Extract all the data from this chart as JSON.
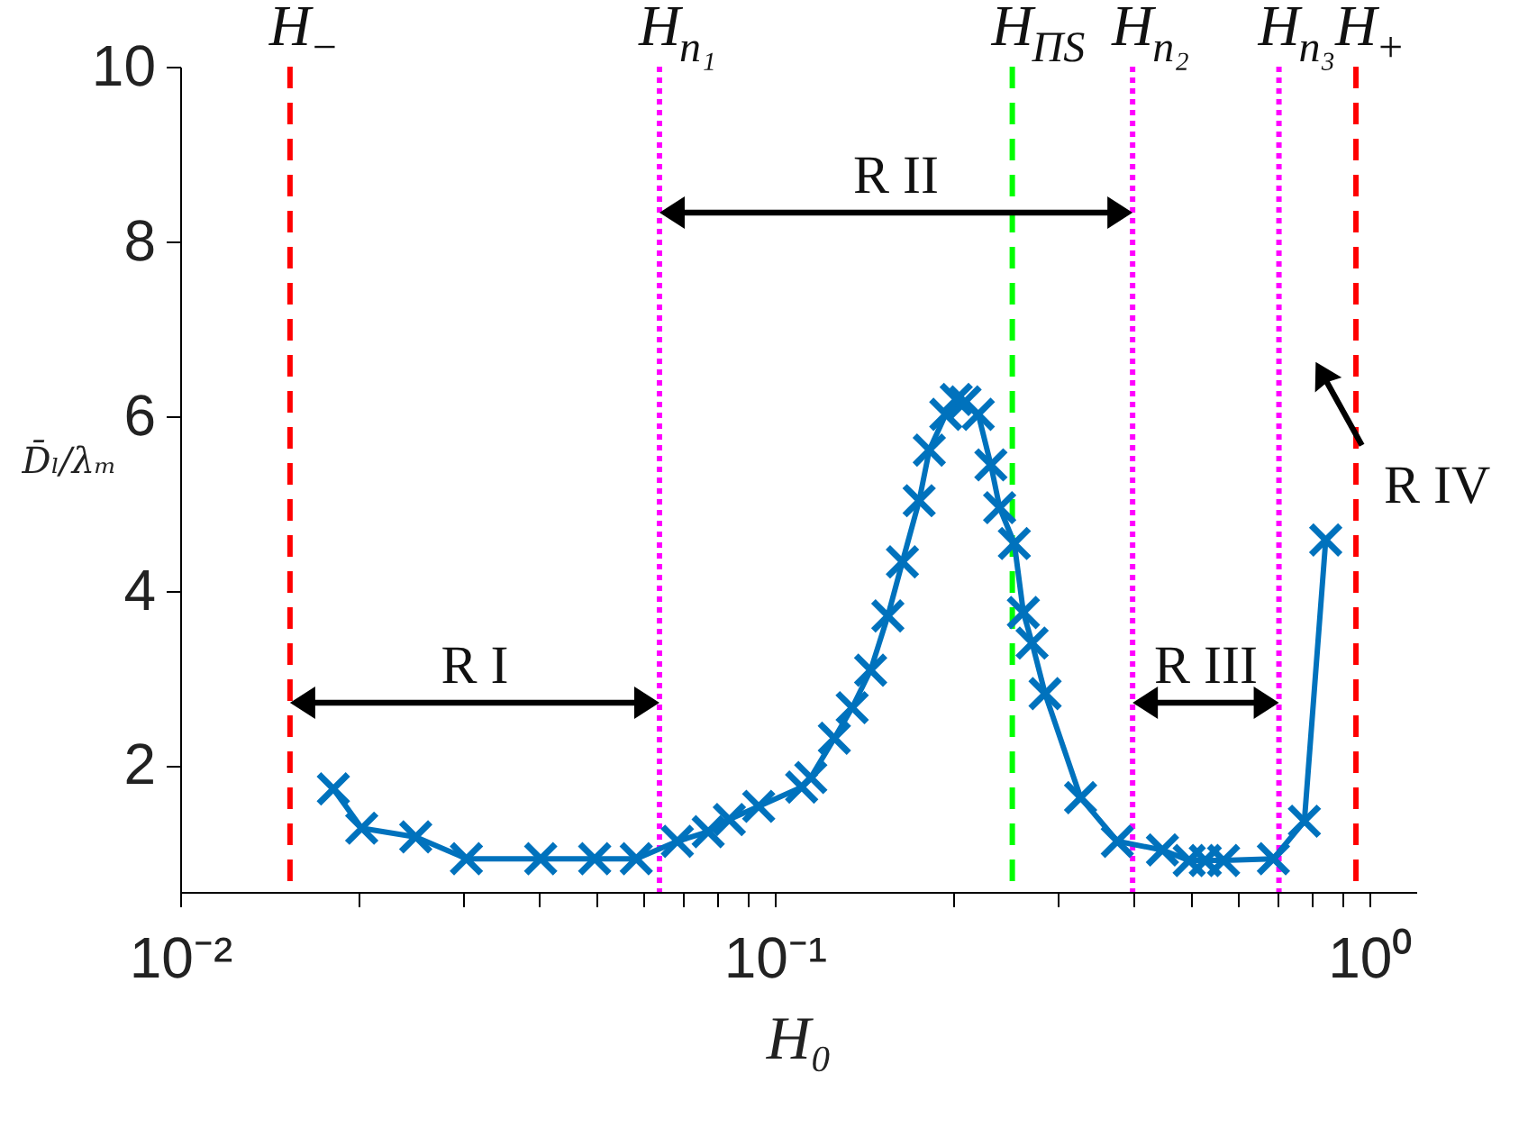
{
  "chart_data": {
    "type": "line",
    "xlabel": "H₀",
    "ylabel": "D̄ₗ/λₘ",
    "log": "x",
    "xlim": [
      0.01,
      1.2
    ],
    "ylim": [
      0.55,
      10
    ],
    "xticks": [
      {
        "value": 0.01,
        "label": "10⁻²"
      },
      {
        "value": 0.02,
        "label": null
      },
      {
        "value": 0.03,
        "label": null
      },
      {
        "value": 0.04,
        "label": null
      },
      {
        "value": 0.05,
        "label": null
      },
      {
        "value": 0.06,
        "label": null
      },
      {
        "value": 0.07,
        "label": null
      },
      {
        "value": 0.08,
        "label": null
      },
      {
        "value": 0.09,
        "label": null
      },
      {
        "value": 0.1,
        "label": "10⁻¹"
      },
      {
        "value": 0.2,
        "label": null
      },
      {
        "value": 0.3,
        "label": null
      },
      {
        "value": 0.4,
        "label": null
      },
      {
        "value": 0.5,
        "label": null
      },
      {
        "value": 0.6,
        "label": null
      },
      {
        "value": 0.7,
        "label": null
      },
      {
        "value": 0.8,
        "label": null
      },
      {
        "value": 0.9,
        "label": null
      },
      {
        "value": 1,
        "label": "10⁰"
      }
    ],
    "yticks": [
      2,
      4,
      6,
      8,
      10
    ],
    "grid": false,
    "marker": "cross",
    "line_style": "solid",
    "series": [
      {
        "color": "#0072bd",
        "x": [
          0.0181,
          0.0202,
          0.0249,
          0.0303,
          0.0404,
          0.0498,
          0.0585,
          0.0686,
          0.0773,
          0.0839,
          0.094,
          0.111,
          0.115,
          0.126,
          0.135,
          0.145,
          0.155,
          0.164,
          0.175,
          0.182,
          0.194,
          0.202,
          0.209,
          0.22,
          0.231,
          0.239,
          0.253,
          0.262,
          0.271,
          0.285,
          0.327,
          0.377,
          0.449,
          0.498,
          0.53,
          0.569,
          0.69,
          0.778,
          0.845
        ],
        "values": [
          1.73,
          1.28,
          1.18,
          0.93,
          0.93,
          0.93,
          0.93,
          1.13,
          1.24,
          1.38,
          1.53,
          1.75,
          1.86,
          2.31,
          2.66,
          3.09,
          3.71,
          4.33,
          5.03,
          5.61,
          6.02,
          6.19,
          6.16,
          6.02,
          5.44,
          4.95,
          4.54,
          3.75,
          3.4,
          2.82,
          1.63,
          1.13,
          1.03,
          0.91,
          0.91,
          0.91,
          0.93,
          1.36,
          4.58
        ]
      }
    ],
    "ref_lines": [
      {
        "axis": "x",
        "value": 0.0153,
        "label": "H$_{−}$",
        "color": "#ff0000",
        "line_style": "dashed"
      },
      {
        "axis": "x",
        "value": 0.064,
        "label": "H$_{n₁}$",
        "color": "#ff00ff",
        "line_style": "dotted"
      },
      {
        "axis": "x",
        "value": 0.251,
        "label": "H$_{ΠS}$",
        "color": "#00ff00",
        "line_style": "dashed"
      },
      {
        "axis": "x",
        "value": 0.4,
        "label": "H$_{n₂}$",
        "color": "#ff00ff",
        "line_style": "dotted"
      },
      {
        "axis": "x",
        "value": 0.705,
        "label": "H$_{n₃}$",
        "color": "#ff00ff",
        "line_style": "dotted"
      },
      {
        "axis": "x",
        "value": 0.95,
        "label": "H$_{+}$",
        "color": "#ff0000",
        "line_style": "dashed"
      }
    ],
    "annotations": [
      "R I",
      "R II",
      "R III",
      "R IV"
    ]
  }
}
